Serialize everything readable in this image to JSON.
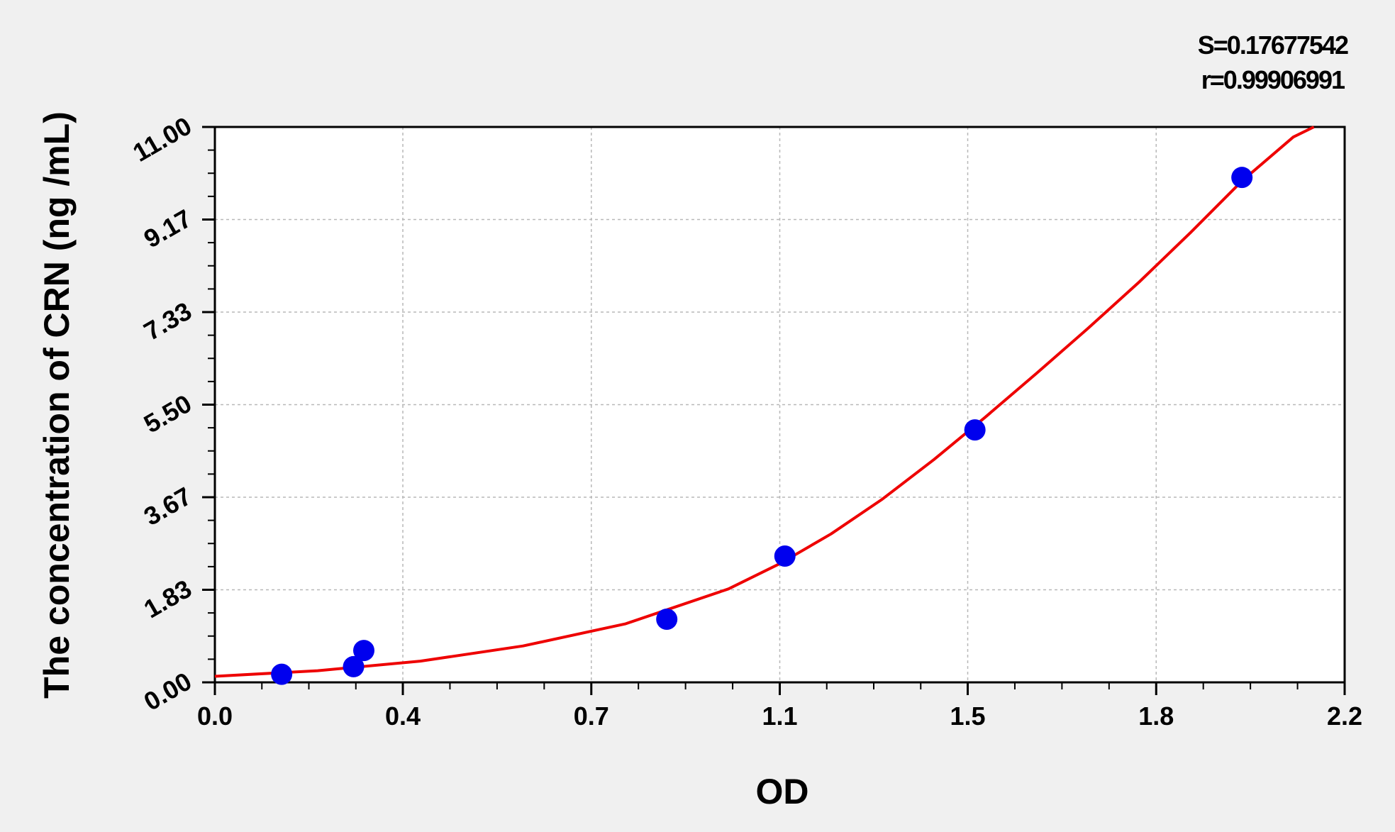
{
  "chart_data": {
    "type": "scatter",
    "xlabel": "OD",
    "ylabel": "The concentration of CRN (ng /mL)",
    "xlim": [
      0.0,
      2.2
    ],
    "ylim": [
      0.0,
      11.0
    ],
    "x_ticks": [
      0.0,
      0.366,
      0.733,
      1.1,
      1.466,
      1.833,
      2.2
    ],
    "x_tick_labels": [
      "0.0",
      "0.4",
      "0.7",
      "1.1",
      "1.5",
      "1.8",
      "2.2"
    ],
    "y_ticks": [
      0.0,
      1.833,
      3.667,
      5.5,
      7.333,
      9.167,
      11.0
    ],
    "y_tick_labels": [
      "0.00",
      "1.83",
      "3.67",
      "5.50",
      "7.33",
      "9.17",
      "11.00"
    ],
    "grid": true,
    "annotations": [
      "S=0.17677542",
      "r=0.99906991"
    ],
    "series": [
      {
        "type": "scatter",
        "color": "#0000ee",
        "x": [
          0.13,
          0.27,
          0.29,
          0.88,
          1.11,
          1.48,
          2.0
        ],
        "y": [
          0.16,
          0.31,
          0.63,
          1.25,
          2.5,
          5.0,
          10.0
        ]
      },
      {
        "type": "line",
        "color": "#ee0000",
        "x": [
          0.0,
          0.2,
          0.4,
          0.6,
          0.8,
          1.0,
          1.1,
          1.2,
          1.3,
          1.4,
          1.5,
          1.6,
          1.7,
          1.8,
          1.9,
          2.0,
          2.1,
          2.14
        ],
        "y": [
          0.12,
          0.23,
          0.42,
          0.72,
          1.16,
          1.85,
          2.35,
          2.94,
          3.63,
          4.41,
          5.25,
          6.12,
          7.01,
          7.93,
          8.91,
          9.93,
          10.8,
          11.0
        ]
      }
    ]
  }
}
